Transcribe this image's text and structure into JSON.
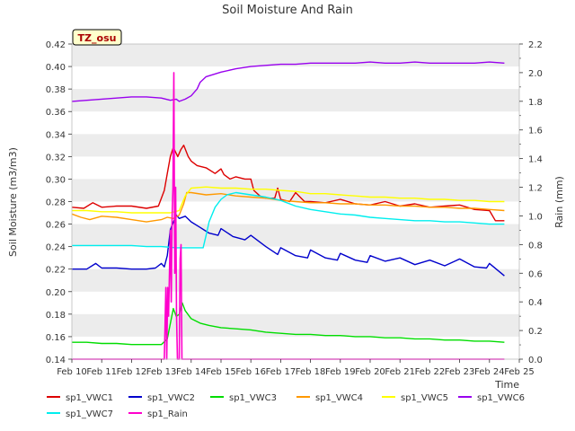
{
  "chart_data": {
    "type": "line",
    "title": "Soil Moisture And Rain",
    "badge": "TZ_osu",
    "xlabel": "Time",
    "ylabel": "Soil Moisture (m3/m3)",
    "y2label": "Rain (mm)",
    "x_ticks": [
      "Feb 10",
      "Feb 11",
      "Feb 12",
      "Feb 13",
      "Feb 14",
      "Feb 15",
      "Feb 16",
      "Feb 17",
      "Feb 18",
      "Feb 19",
      "Feb 20",
      "Feb 21",
      "Feb 22",
      "Feb 23",
      "Feb 24",
      "Feb 25"
    ],
    "xlim": [
      10,
      25
    ],
    "ylim": [
      0.14,
      0.42
    ],
    "y_ticks": [
      "0.14",
      "0.16",
      "0.18",
      "0.20",
      "0.22",
      "0.24",
      "0.26",
      "0.28",
      "0.30",
      "0.32",
      "0.34",
      "0.36",
      "0.38",
      "0.40",
      "0.42"
    ],
    "y2lim": [
      0.0,
      2.2
    ],
    "y2_ticks": [
      "0.0",
      "0.2",
      "0.4",
      "0.6",
      "0.8",
      "1.0",
      "1.2",
      "1.4",
      "1.6",
      "1.8",
      "2.0",
      "2.2"
    ],
    "grid": "horizontal bands",
    "legend_position": "bottom",
    "series": [
      {
        "name": "sp1_VWC1",
        "color": "#dd0000",
        "axis": "left",
        "x": [
          10.0,
          10.4,
          10.7,
          11.0,
          11.5,
          12.0,
          12.5,
          12.9,
          13.1,
          13.2,
          13.3,
          13.4,
          13.55,
          13.65,
          13.75,
          13.9,
          14.0,
          14.2,
          14.5,
          14.8,
          15.0,
          15.1,
          15.3,
          15.5,
          15.8,
          16.0,
          16.1,
          16.3,
          16.5,
          16.8,
          16.9,
          17.0,
          17.3,
          17.5,
          17.8,
          18.0,
          18.5,
          19.0,
          19.5,
          20.0,
          20.5,
          21.0,
          21.5,
          22.0,
          22.5,
          23.0,
          23.5,
          24.0,
          24.2,
          24.5
        ],
        "y": [
          0.275,
          0.274,
          0.279,
          0.275,
          0.276,
          0.276,
          0.274,
          0.276,
          0.29,
          0.305,
          0.32,
          0.328,
          0.32,
          0.326,
          0.33,
          0.32,
          0.316,
          0.312,
          0.31,
          0.305,
          0.309,
          0.304,
          0.3,
          0.302,
          0.3,
          0.3,
          0.29,
          0.285,
          0.283,
          0.283,
          0.292,
          0.282,
          0.28,
          0.288,
          0.28,
          0.28,
          0.279,
          0.282,
          0.278,
          0.277,
          0.28,
          0.276,
          0.278,
          0.275,
          0.276,
          0.277,
          0.273,
          0.272,
          0.263,
          0.263
        ]
      },
      {
        "name": "sp1_VWC2",
        "color": "#0000cc",
        "axis": "left",
        "x": [
          10.0,
          10.5,
          10.8,
          11.0,
          11.5,
          12.0,
          12.5,
          12.8,
          13.0,
          13.1,
          13.2,
          13.3,
          13.5,
          13.6,
          13.8,
          14.0,
          14.3,
          14.6,
          14.9,
          15.0,
          15.4,
          15.8,
          16.0,
          16.5,
          16.9,
          17.0,
          17.5,
          17.9,
          18.0,
          18.5,
          18.9,
          19.0,
          19.5,
          19.9,
          20.0,
          20.5,
          21.0,
          21.5,
          22.0,
          22.5,
          23.0,
          23.5,
          23.9,
          24.0,
          24.5
        ],
        "y": [
          0.22,
          0.22,
          0.225,
          0.221,
          0.221,
          0.22,
          0.22,
          0.221,
          0.225,
          0.222,
          0.232,
          0.255,
          0.268,
          0.265,
          0.267,
          0.262,
          0.257,
          0.252,
          0.25,
          0.256,
          0.249,
          0.246,
          0.25,
          0.24,
          0.233,
          0.239,
          0.232,
          0.23,
          0.237,
          0.23,
          0.228,
          0.234,
          0.228,
          0.226,
          0.232,
          0.227,
          0.23,
          0.224,
          0.228,
          0.223,
          0.229,
          0.222,
          0.221,
          0.225,
          0.214
        ]
      },
      {
        "name": "sp1_VWC3",
        "color": "#00dd00",
        "axis": "left",
        "x": [
          10.0,
          10.5,
          11.0,
          11.5,
          12.0,
          12.5,
          13.0,
          13.2,
          13.4,
          13.5,
          13.6,
          13.7,
          13.8,
          14.0,
          14.3,
          14.6,
          15.0,
          15.5,
          16.0,
          16.5,
          17.0,
          17.5,
          18.0,
          18.5,
          19.0,
          19.5,
          20.0,
          20.5,
          21.0,
          21.5,
          22.0,
          22.5,
          23.0,
          23.5,
          24.0,
          24.5
        ],
        "y": [
          0.155,
          0.155,
          0.154,
          0.154,
          0.153,
          0.153,
          0.153,
          0.158,
          0.185,
          0.178,
          0.18,
          0.19,
          0.183,
          0.176,
          0.172,
          0.17,
          0.168,
          0.167,
          0.166,
          0.164,
          0.163,
          0.162,
          0.162,
          0.161,
          0.161,
          0.16,
          0.16,
          0.159,
          0.159,
          0.158,
          0.158,
          0.157,
          0.157,
          0.156,
          0.156,
          0.155
        ]
      },
      {
        "name": "sp1_VWC4",
        "color": "#ff9900",
        "axis": "left",
        "x": [
          10.0,
          10.3,
          10.6,
          11.0,
          11.5,
          12.0,
          12.5,
          13.0,
          13.2,
          13.4,
          13.6,
          13.75,
          13.85,
          14.0,
          14.5,
          15.0,
          15.5,
          16.0,
          16.5,
          17.0,
          17.5,
          18.0,
          18.5,
          19.0,
          19.5,
          20.0,
          20.5,
          21.0,
          21.5,
          22.0,
          22.5,
          23.0,
          23.5,
          24.0,
          24.5
        ],
        "y": [
          0.269,
          0.266,
          0.264,
          0.267,
          0.266,
          0.264,
          0.262,
          0.264,
          0.266,
          0.265,
          0.268,
          0.278,
          0.288,
          0.288,
          0.286,
          0.287,
          0.285,
          0.284,
          0.283,
          0.281,
          0.28,
          0.279,
          0.279,
          0.278,
          0.278,
          0.277,
          0.277,
          0.276,
          0.276,
          0.275,
          0.275,
          0.274,
          0.274,
          0.273,
          0.272
        ]
      },
      {
        "name": "sp1_VWC5",
        "color": "#ffff00",
        "axis": "left",
        "x": [
          10.0,
          10.5,
          11.0,
          11.5,
          12.0,
          12.5,
          13.0,
          13.3,
          13.6,
          13.8,
          14.0,
          14.5,
          15.0,
          15.5,
          16.0,
          16.5,
          17.0,
          17.5,
          18.0,
          18.5,
          19.0,
          19.5,
          20.0,
          20.5,
          21.0,
          21.5,
          22.0,
          22.5,
          23.0,
          23.5,
          24.0,
          24.5
        ],
        "y": [
          0.272,
          0.272,
          0.271,
          0.271,
          0.27,
          0.27,
          0.27,
          0.27,
          0.272,
          0.285,
          0.292,
          0.293,
          0.292,
          0.292,
          0.291,
          0.291,
          0.29,
          0.289,
          0.287,
          0.287,
          0.286,
          0.285,
          0.284,
          0.284,
          0.283,
          0.283,
          0.282,
          0.282,
          0.281,
          0.281,
          0.28,
          0.28
        ]
      },
      {
        "name": "sp1_VWC6",
        "color": "#9900ee",
        "axis": "left",
        "x": [
          10.0,
          10.5,
          11.0,
          11.5,
          12.0,
          12.5,
          13.0,
          13.3,
          13.5,
          13.6,
          13.8,
          14.0,
          14.2,
          14.3,
          14.5,
          15.0,
          15.5,
          16.0,
          16.5,
          17.0,
          17.5,
          18.0,
          18.5,
          19.0,
          19.5,
          20.0,
          20.5,
          21.0,
          21.5,
          22.0,
          22.5,
          23.0,
          23.5,
          24.0,
          24.5
        ],
        "y": [
          0.369,
          0.37,
          0.371,
          0.372,
          0.373,
          0.373,
          0.372,
          0.37,
          0.371,
          0.369,
          0.371,
          0.374,
          0.38,
          0.386,
          0.391,
          0.395,
          0.398,
          0.4,
          0.401,
          0.402,
          0.402,
          0.403,
          0.403,
          0.403,
          0.403,
          0.404,
          0.403,
          0.403,
          0.404,
          0.403,
          0.403,
          0.403,
          0.403,
          0.404,
          0.403
        ]
      },
      {
        "name": "sp1_VWC7",
        "color": "#00eeee",
        "axis": "left",
        "x": [
          10.0,
          10.5,
          11.0,
          11.5,
          12.0,
          12.5,
          13.0,
          13.5,
          14.0,
          14.4,
          14.5,
          14.6,
          14.8,
          15.0,
          15.2,
          15.5,
          16.0,
          16.5,
          17.0,
          17.5,
          18.0,
          18.5,
          19.0,
          19.5,
          20.0,
          20.5,
          21.0,
          21.5,
          22.0,
          22.5,
          23.0,
          23.5,
          24.0,
          24.5
        ],
        "y": [
          0.241,
          0.241,
          0.241,
          0.241,
          0.241,
          0.24,
          0.24,
          0.239,
          0.239,
          0.239,
          0.25,
          0.262,
          0.275,
          0.282,
          0.286,
          0.288,
          0.286,
          0.284,
          0.281,
          0.276,
          0.273,
          0.271,
          0.269,
          0.268,
          0.266,
          0.265,
          0.264,
          0.263,
          0.263,
          0.262,
          0.262,
          0.261,
          0.26,
          0.26
        ]
      },
      {
        "name": "sp1_Rain",
        "color": "#ff00cc",
        "axis": "right",
        "x": [
          10.0,
          13.1,
          13.15,
          13.18,
          13.21,
          13.24,
          13.27,
          13.3,
          13.33,
          13.36,
          13.39,
          13.42,
          13.45,
          13.48,
          13.51,
          13.54,
          13.6,
          13.63,
          13.66,
          13.69,
          13.72,
          13.75,
          24.5
        ],
        "y": [
          0.0,
          0.0,
          0.5,
          0.0,
          0.5,
          0.3,
          0.6,
          0.9,
          0.4,
          1.0,
          1.2,
          2.0,
          0.6,
          1.2,
          0.3,
          0.0,
          0.0,
          0.7,
          0.8,
          0.0,
          0.0,
          0.0,
          0.0
        ]
      }
    ]
  }
}
